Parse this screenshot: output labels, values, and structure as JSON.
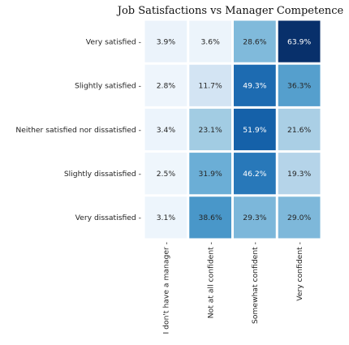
{
  "chart_data": {
    "type": "heatmap",
    "title": "Job Satisfactions vs Manager Competence",
    "xlabel": "",
    "ylabel": "",
    "rows": [
      "Very satisfied",
      "Slightly satisfied",
      "Neither satisfied nor dissatisfied",
      "Slightly dissatisfied",
      "Very dissatisfied"
    ],
    "columns": [
      "I don't have a manager",
      "Not at all confident",
      "Somewhat confident",
      "Very confident"
    ],
    "values": [
      [
        3.9,
        3.6,
        28.6,
        63.9
      ],
      [
        2.8,
        11.7,
        49.3,
        36.3
      ],
      [
        3.4,
        23.1,
        51.9,
        21.6
      ],
      [
        2.5,
        31.9,
        46.2,
        19.3
      ],
      [
        3.1,
        38.6,
        29.3,
        29.0
      ]
    ],
    "value_labels": [
      [
        "3.9%",
        "3.6%",
        "28.6%",
        "63.9%"
      ],
      [
        "2.8%",
        "11.7%",
        "49.3%",
        "36.3%"
      ],
      [
        "3.4%",
        "23.1%",
        "51.9%",
        "21.6%"
      ],
      [
        "2.5%",
        "31.9%",
        "46.2%",
        "19.3%"
      ],
      [
        "3.1%",
        "38.6%",
        "29.3%",
        "29.0%"
      ]
    ],
    "colormap": "Blues",
    "color_range": [
      0,
      63.9
    ],
    "colors": {
      "low": "#f7fbff",
      "high": "#08306b",
      "gap": "#ffffff",
      "dark_text": "#262626",
      "light_text": "#ffffff"
    },
    "grid": false,
    "legend": "none"
  }
}
